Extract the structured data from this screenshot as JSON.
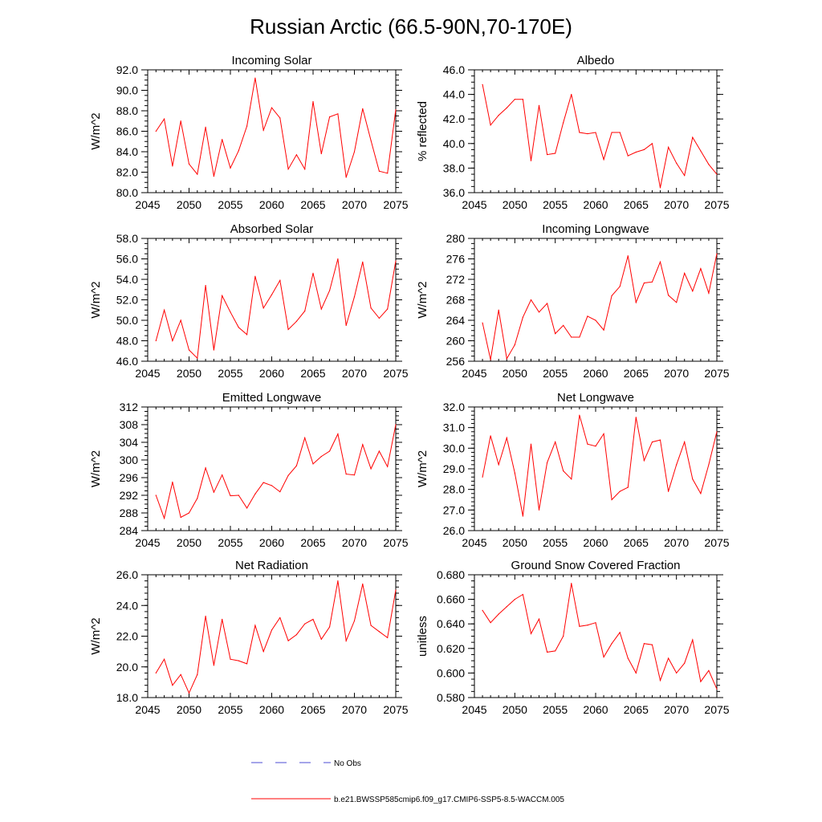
{
  "figure": {
    "title": "Russian Arctic (66.5-90N,70-170E)"
  },
  "legend": {
    "entries": [
      {
        "label": "No Obs",
        "color": "#4b4bd6",
        "style": "dashed"
      },
      {
        "label": "b.e21.BWSSP585cmip6.f09_g17.CMIP6-SSP5-8.5-WACCM.005",
        "color": "#ff0000",
        "style": "solid"
      }
    ],
    "placement": "bottom-center"
  },
  "chart_data": [
    {
      "type": "line",
      "title": "Incoming Solar",
      "xlabel": "",
      "ylabel": "W/m^2",
      "xlim": [
        2045,
        2075
      ],
      "ylim": [
        80,
        92
      ],
      "xticks": [
        2045,
        2050,
        2055,
        2060,
        2065,
        2070,
        2075
      ],
      "yticks": [
        80,
        82,
        84,
        86,
        88,
        90,
        92
      ],
      "ytick_labels": [
        "80.0",
        "82.0",
        "84.0",
        "86.0",
        "88.0",
        "90.0",
        "92.0"
      ],
      "ytick_minor": 0.5,
      "color": "#ff0000",
      "x": [
        2046,
        2047,
        2048,
        2049,
        2050,
        2051,
        2052,
        2053,
        2054,
        2055,
        2056,
        2057,
        2058,
        2059,
        2060,
        2061,
        2062,
        2063,
        2064,
        2065,
        2066,
        2067,
        2068,
        2069,
        2070,
        2071,
        2072,
        2073,
        2074,
        2075
      ],
      "values": [
        86.0,
        87.2,
        82.6,
        87.0,
        82.8,
        81.8,
        86.4,
        81.6,
        85.2,
        82.4,
        84.1,
        86.5,
        91.2,
        86.1,
        88.3,
        87.3,
        82.3,
        83.7,
        82.3,
        88.9,
        83.8,
        87.4,
        87.7,
        81.5,
        84.0,
        88.2,
        85.1,
        82.1,
        81.9,
        88.1
      ]
    },
    {
      "type": "line",
      "title": "Albedo",
      "xlabel": "",
      "ylabel": "% reflected",
      "xlim": [
        2045,
        2075
      ],
      "ylim": [
        36,
        46
      ],
      "xticks": [
        2045,
        2050,
        2055,
        2060,
        2065,
        2070,
        2075
      ],
      "yticks": [
        36,
        38,
        40,
        42,
        44,
        46
      ],
      "ytick_labels": [
        "36.0",
        "38.0",
        "40.0",
        "42.0",
        "44.0",
        "46.0"
      ],
      "ytick_minor": 0.5,
      "color": "#ff0000",
      "x": [
        2046,
        2047,
        2048,
        2049,
        2050,
        2051,
        2052,
        2053,
        2054,
        2055,
        2056,
        2057,
        2058,
        2059,
        2060,
        2061,
        2062,
        2063,
        2064,
        2065,
        2066,
        2067,
        2068,
        2069,
        2070,
        2071,
        2072,
        2073,
        2074,
        2075
      ],
      "values": [
        44.8,
        41.5,
        42.3,
        42.9,
        43.6,
        43.6,
        38.6,
        43.1,
        39.1,
        39.2,
        41.7,
        44.0,
        40.9,
        40.8,
        40.9,
        38.7,
        40.9,
        40.9,
        39.0,
        39.3,
        39.5,
        40.0,
        36.4,
        39.7,
        38.4,
        37.4,
        40.5,
        39.4,
        38.3,
        37.5
      ]
    },
    {
      "type": "line",
      "title": "Absorbed Solar",
      "xlabel": "",
      "ylabel": "W/m^2",
      "xlim": [
        2045,
        2075
      ],
      "ylim": [
        46,
        58
      ],
      "xticks": [
        2045,
        2050,
        2055,
        2060,
        2065,
        2070,
        2075
      ],
      "yticks": [
        46,
        48,
        50,
        52,
        54,
        56,
        58
      ],
      "ytick_labels": [
        "46.0",
        "48.0",
        "50.0",
        "52.0",
        "54.0",
        "56.0",
        "58.0"
      ],
      "ytick_minor": 0.5,
      "color": "#ff0000",
      "x": [
        2046,
        2047,
        2048,
        2049,
        2050,
        2051,
        2052,
        2053,
        2054,
        2055,
        2056,
        2057,
        2058,
        2059,
        2060,
        2061,
        2062,
        2063,
        2064,
        2065,
        2066,
        2067,
        2068,
        2069,
        2070,
        2071,
        2072,
        2073,
        2074,
        2075
      ],
      "values": [
        48.0,
        51.0,
        48.0,
        50.0,
        47.1,
        46.3,
        53.4,
        47.1,
        52.4,
        50.8,
        49.3,
        48.6,
        54.3,
        51.2,
        52.5,
        53.9,
        49.1,
        49.9,
        50.9,
        54.6,
        51.1,
        52.9,
        56.0,
        49.5,
        52.3,
        55.7,
        51.2,
        50.2,
        51.1,
        55.8
      ]
    },
    {
      "type": "line",
      "title": "Incoming Longwave",
      "xlabel": "",
      "ylabel": "W/m^2",
      "xlim": [
        2045,
        2075
      ],
      "ylim": [
        256,
        280
      ],
      "xticks": [
        2045,
        2050,
        2055,
        2060,
        2065,
        2070,
        2075
      ],
      "yticks": [
        256,
        260,
        264,
        268,
        272,
        276,
        280
      ],
      "ytick_labels": [
        "256",
        "260",
        "264",
        "268",
        "272",
        "276",
        "280"
      ],
      "ytick_minor": 1,
      "color": "#ff0000",
      "x": [
        2046,
        2047,
        2048,
        2049,
        2050,
        2051,
        2052,
        2053,
        2054,
        2055,
        2056,
        2057,
        2058,
        2059,
        2060,
        2061,
        2062,
        2063,
        2064,
        2065,
        2066,
        2067,
        2068,
        2069,
        2070,
        2071,
        2072,
        2073,
        2074,
        2075
      ],
      "values": [
        263.5,
        256.3,
        266.0,
        256.5,
        259.2,
        264.6,
        268.0,
        265.6,
        267.3,
        261.4,
        263.0,
        260.7,
        260.7,
        264.8,
        264.0,
        262.1,
        268.8,
        270.6,
        276.6,
        267.5,
        271.3,
        271.5,
        275.4,
        268.9,
        267.5,
        273.2,
        269.7,
        274.1,
        269.3,
        277.0
      ]
    },
    {
      "type": "line",
      "title": "Emitted Longwave",
      "xlabel": "",
      "ylabel": "W/m^2",
      "xlim": [
        2045,
        2075
      ],
      "ylim": [
        284,
        312
      ],
      "xticks": [
        2045,
        2050,
        2055,
        2060,
        2065,
        2070,
        2075
      ],
      "yticks": [
        284,
        288,
        292,
        296,
        300,
        304,
        308,
        312
      ],
      "ytick_labels": [
        "284",
        "288",
        "292",
        "296",
        "300",
        "304",
        "308",
        "312"
      ],
      "ytick_minor": 1,
      "color": "#ff0000",
      "x": [
        2046,
        2047,
        2048,
        2049,
        2050,
        2051,
        2052,
        2053,
        2054,
        2055,
        2056,
        2057,
        2058,
        2059,
        2060,
        2061,
        2062,
        2063,
        2064,
        2065,
        2066,
        2067,
        2068,
        2069,
        2070,
        2071,
        2072,
        2073,
        2074,
        2075
      ],
      "values": [
        292.0,
        286.8,
        295.0,
        287.0,
        288.0,
        291.3,
        298.2,
        292.7,
        296.6,
        291.9,
        292.0,
        289.1,
        292.3,
        294.9,
        294.2,
        292.8,
        296.5,
        298.7,
        305.0,
        299.1,
        300.8,
        302.0,
        305.9,
        296.8,
        296.6,
        303.5,
        298.0,
        302.0,
        298.5,
        308.0
      ]
    },
    {
      "type": "line",
      "title": "Net Longwave",
      "xlabel": "",
      "ylabel": "W/m^2",
      "xlim": [
        2045,
        2075
      ],
      "ylim": [
        26,
        32
      ],
      "xticks": [
        2045,
        2050,
        2055,
        2060,
        2065,
        2070,
        2075
      ],
      "yticks": [
        26,
        27,
        28,
        29,
        30,
        31,
        32
      ],
      "ytick_labels": [
        "26.0",
        "27.0",
        "28.0",
        "29.0",
        "30.0",
        "31.0",
        "32.0"
      ],
      "ytick_minor": 0.2,
      "color": "#ff0000",
      "x": [
        2046,
        2047,
        2048,
        2049,
        2050,
        2051,
        2052,
        2053,
        2054,
        2055,
        2056,
        2057,
        2058,
        2059,
        2060,
        2061,
        2062,
        2063,
        2064,
        2065,
        2066,
        2067,
        2068,
        2069,
        2070,
        2071,
        2072,
        2073,
        2074,
        2075
      ],
      "values": [
        28.6,
        30.6,
        29.2,
        30.5,
        28.8,
        26.7,
        30.2,
        27.0,
        29.3,
        30.3,
        28.9,
        28.5,
        31.6,
        30.2,
        30.1,
        30.7,
        27.5,
        27.9,
        28.1,
        31.5,
        29.4,
        30.3,
        30.4,
        27.9,
        29.2,
        30.3,
        28.5,
        27.8,
        29.2,
        30.8
      ]
    },
    {
      "type": "line",
      "title": "Net Radiation",
      "xlabel": "",
      "ylabel": "W/m^2",
      "xlim": [
        2045,
        2075
      ],
      "ylim": [
        18,
        26
      ],
      "xticks": [
        2045,
        2050,
        2055,
        2060,
        2065,
        2070,
        2075
      ],
      "yticks": [
        18,
        20,
        22,
        24,
        26
      ],
      "ytick_labels": [
        "18.0",
        "20.0",
        "22.0",
        "24.0",
        "26.0"
      ],
      "ytick_minor": 0.4,
      "color": "#ff0000",
      "x": [
        2046,
        2047,
        2048,
        2049,
        2050,
        2051,
        2052,
        2053,
        2054,
        2055,
        2056,
        2057,
        2058,
        2059,
        2060,
        2061,
        2062,
        2063,
        2064,
        2065,
        2066,
        2067,
        2068,
        2069,
        2070,
        2071,
        2072,
        2073,
        2074,
        2075
      ],
      "values": [
        19.6,
        20.5,
        18.8,
        19.5,
        18.3,
        19.5,
        23.3,
        20.1,
        23.1,
        20.5,
        20.4,
        20.2,
        22.7,
        21.0,
        22.4,
        23.2,
        21.7,
        22.1,
        22.8,
        23.1,
        21.8,
        22.6,
        25.6,
        21.7,
        23.0,
        25.4,
        22.7,
        22.3,
        21.9,
        25.0
      ]
    },
    {
      "type": "line",
      "title": "Ground Snow Covered Fraction",
      "xlabel": "",
      "ylabel": "unitless",
      "xlim": [
        2045,
        2075
      ],
      "ylim": [
        0.58,
        0.68
      ],
      "xticks": [
        2045,
        2050,
        2055,
        2060,
        2065,
        2070,
        2075
      ],
      "yticks": [
        0.58,
        0.6,
        0.62,
        0.64,
        0.66,
        0.68
      ],
      "ytick_labels": [
        "0.580",
        "0.600",
        "0.620",
        "0.640",
        "0.660",
        "0.680"
      ],
      "ytick_minor": 0.005,
      "color": "#ff0000",
      "x": [
        2046,
        2047,
        2048,
        2049,
        2050,
        2051,
        2052,
        2053,
        2054,
        2055,
        2056,
        2057,
        2058,
        2059,
        2060,
        2061,
        2062,
        2063,
        2064,
        2065,
        2066,
        2067,
        2068,
        2069,
        2070,
        2071,
        2072,
        2073,
        2074,
        2075
      ],
      "values": [
        0.651,
        0.641,
        0.648,
        0.654,
        0.66,
        0.664,
        0.632,
        0.644,
        0.617,
        0.618,
        0.63,
        0.673,
        0.638,
        0.639,
        0.641,
        0.613,
        0.624,
        0.633,
        0.612,
        0.6,
        0.624,
        0.623,
        0.594,
        0.612,
        0.6,
        0.608,
        0.627,
        0.593,
        0.602,
        0.587
      ]
    }
  ]
}
